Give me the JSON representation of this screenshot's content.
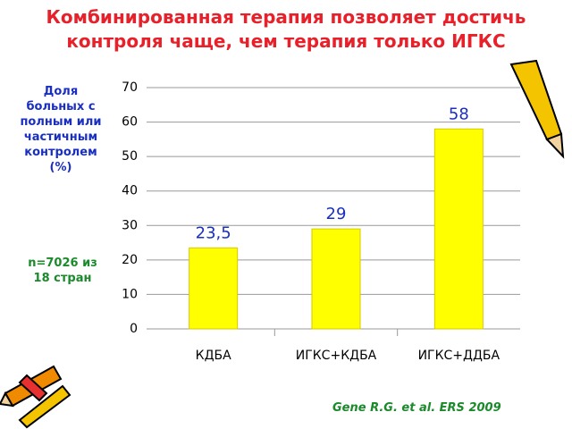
{
  "chart_data": {
    "type": "bar",
    "title": "Комбинированная терапия позволяет достичь контроля чаще, чем терапия только ИГКС",
    "ylabel": "Доля больных с полным или частичным контролем (%)",
    "annotation": "n=7026 из 18 стран",
    "source": "Gene R.G. et al. ERS 2009",
    "categories": [
      "КДБА",
      "ИГКС+КДБА",
      "ИГКС+ДДБА"
    ],
    "values": [
      23.5,
      29,
      58
    ],
    "value_labels": [
      "23,5",
      "29",
      "58"
    ],
    "color": "#ffff00",
    "ylim": [
      0,
      70
    ],
    "yticks": [
      0,
      10,
      20,
      30,
      40,
      50,
      60,
      70
    ],
    "grid": true
  }
}
